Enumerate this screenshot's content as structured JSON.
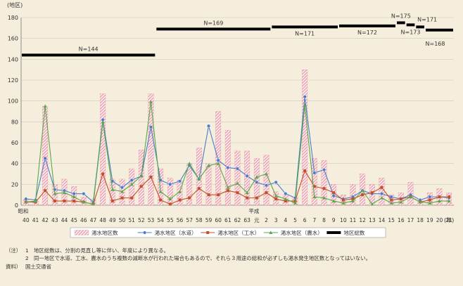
{
  "chart_data": {
    "type": "bar",
    "yunit": "(地区)",
    "xunit": "(年)",
    "ylim": [
      0,
      180
    ],
    "yticks": [
      0,
      20,
      40,
      60,
      80,
      100,
      120,
      140,
      160,
      180
    ],
    "grid": true,
    "legend_placement": "bottom",
    "categories": [
      "40",
      "41",
      "42",
      "43",
      "44",
      "45",
      "46",
      "47",
      "48",
      "49",
      "50",
      "51",
      "52",
      "53",
      "54",
      "55",
      "56",
      "57",
      "58",
      "59",
      "60",
      "61",
      "62",
      "63",
      "元",
      "2",
      "3",
      "4",
      "5",
      "6",
      "7",
      "8",
      "9",
      "10",
      "11",
      "12",
      "13",
      "14",
      "15",
      "16",
      "17",
      "18",
      "19",
      "20",
      "21"
    ],
    "era_labels": [
      {
        "label": "昭和",
        "at": "40"
      },
      {
        "label": "平成",
        "at": "元"
      }
    ],
    "series": [
      {
        "name": "渇水地区数",
        "type": "bar",
        "color": "#e58e9f",
        "values": [
          6,
          4,
          95,
          20,
          25,
          18,
          8,
          6,
          107,
          25,
          25,
          35,
          53,
          107,
          35,
          26,
          24,
          40,
          55,
          40,
          90,
          72,
          52,
          52,
          45,
          48,
          13,
          10,
          8,
          130,
          45,
          43,
          20,
          10,
          20,
          30,
          20,
          26,
          10,
          12,
          22,
          5,
          12,
          16,
          12
        ]
      },
      {
        "name": "渇水地区（水道）",
        "type": "line",
        "color": "#4a7cc8",
        "values": [
          6,
          5,
          45,
          15,
          14,
          11,
          11,
          3,
          82,
          23,
          17,
          24,
          28,
          75,
          24,
          20,
          23,
          38,
          25,
          76,
          43,
          36,
          35,
          28,
          22,
          19,
          22,
          11,
          7,
          104,
          31,
          34,
          9,
          6,
          8,
          14,
          11,
          11,
          8,
          6,
          10,
          5,
          8,
          8,
          7
        ]
      },
      {
        "name": "渇水地区（工水）",
        "type": "line",
        "color": "#c0502a",
        "values": [
          3,
          3,
          14,
          4,
          4,
          4,
          3,
          1,
          30,
          4,
          7,
          7,
          18,
          27,
          5,
          1,
          5,
          7,
          16,
          10,
          10,
          14,
          12,
          7,
          7,
          12,
          6,
          4,
          4,
          33,
          18,
          16,
          12,
          5,
          6,
          10,
          12,
          17,
          5,
          6,
          8,
          3,
          5,
          8,
          8
        ]
      },
      {
        "name": "渇水地区（農水）",
        "type": "line",
        "color": "#59a84b",
        "values": [
          3,
          4,
          95,
          11,
          12,
          8,
          3,
          1,
          80,
          15,
          13,
          20,
          28,
          99,
          13,
          6,
          13,
          40,
          25,
          38,
          40,
          17,
          21,
          12,
          27,
          30,
          9,
          6,
          2,
          96,
          8,
          7,
          4,
          2,
          4,
          14,
          1,
          7,
          2,
          3,
          8,
          3,
          2,
          4,
          4
        ]
      },
      {
        "name": "地区総数",
        "type": "step",
        "color": "#000000",
        "segments": [
          {
            "value": 144,
            "from": "40",
            "to": "53",
            "label": "N=144"
          },
          {
            "value": 169,
            "from": "54",
            "to": "2",
            "label": "N=169"
          },
          {
            "value": 171,
            "from": "3",
            "to": "9",
            "label": "N=171"
          },
          {
            "value": 172,
            "from": "10",
            "to": "15",
            "label": "N=172"
          },
          {
            "value": 175,
            "from": "16",
            "to": "16",
            "label": "N=175"
          },
          {
            "value": 173,
            "from": "17",
            "to": "17",
            "label": "N=173"
          },
          {
            "value": 171,
            "from": "18",
            "to": "18",
            "label": "N=171"
          },
          {
            "value": 168,
            "from": "19",
            "to": "21",
            "label": "N=168"
          }
        ]
      }
    ]
  },
  "notes": {
    "label": "（注）",
    "items": [
      {
        "num": "1",
        "text": "地区総数は、分割の見直し等に伴い、年度により異なる。"
      },
      {
        "num": "2",
        "text": "同一地区で水道、工水、農水のうち複数の減断水が行われた場合もあるので、それら３用途の総和が必ずしも渇水発生地区数となってはいない。"
      }
    ],
    "source_label": "資料）",
    "source_text": "国土交通省"
  }
}
